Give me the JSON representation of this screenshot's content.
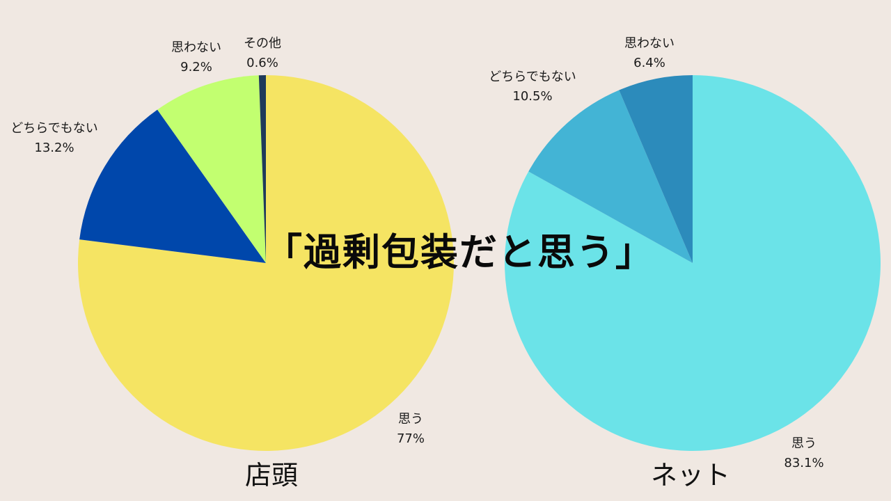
{
  "title": "「過剰包装だと思う」",
  "chart_data": [
    {
      "type": "pie",
      "caption": "店頭",
      "slices": [
        {
          "label": "思う",
          "value": 77,
          "display": "77%",
          "color": "#F5E463"
        },
        {
          "label": "どちらでもない",
          "value": 13.2,
          "display": "13.2%",
          "color": "#0047AB"
        },
        {
          "label": "思わない",
          "value": 9.2,
          "display": "9.2%",
          "color": "#C2FF70"
        },
        {
          "label": "その他",
          "value": 0.6,
          "display": "0.6%",
          "color": "#1F3A5A"
        }
      ]
    },
    {
      "type": "pie",
      "caption": "ネット",
      "slices": [
        {
          "label": "思う",
          "value": 83.1,
          "display": "83.1%",
          "color": "#6BE3E8"
        },
        {
          "label": "どちらでもない",
          "value": 10.5,
          "display": "10.5%",
          "color": "#43B4D5"
        },
        {
          "label": "思わない",
          "value": 6.4,
          "display": "6.4%",
          "color": "#2C8BBB"
        }
      ]
    }
  ]
}
